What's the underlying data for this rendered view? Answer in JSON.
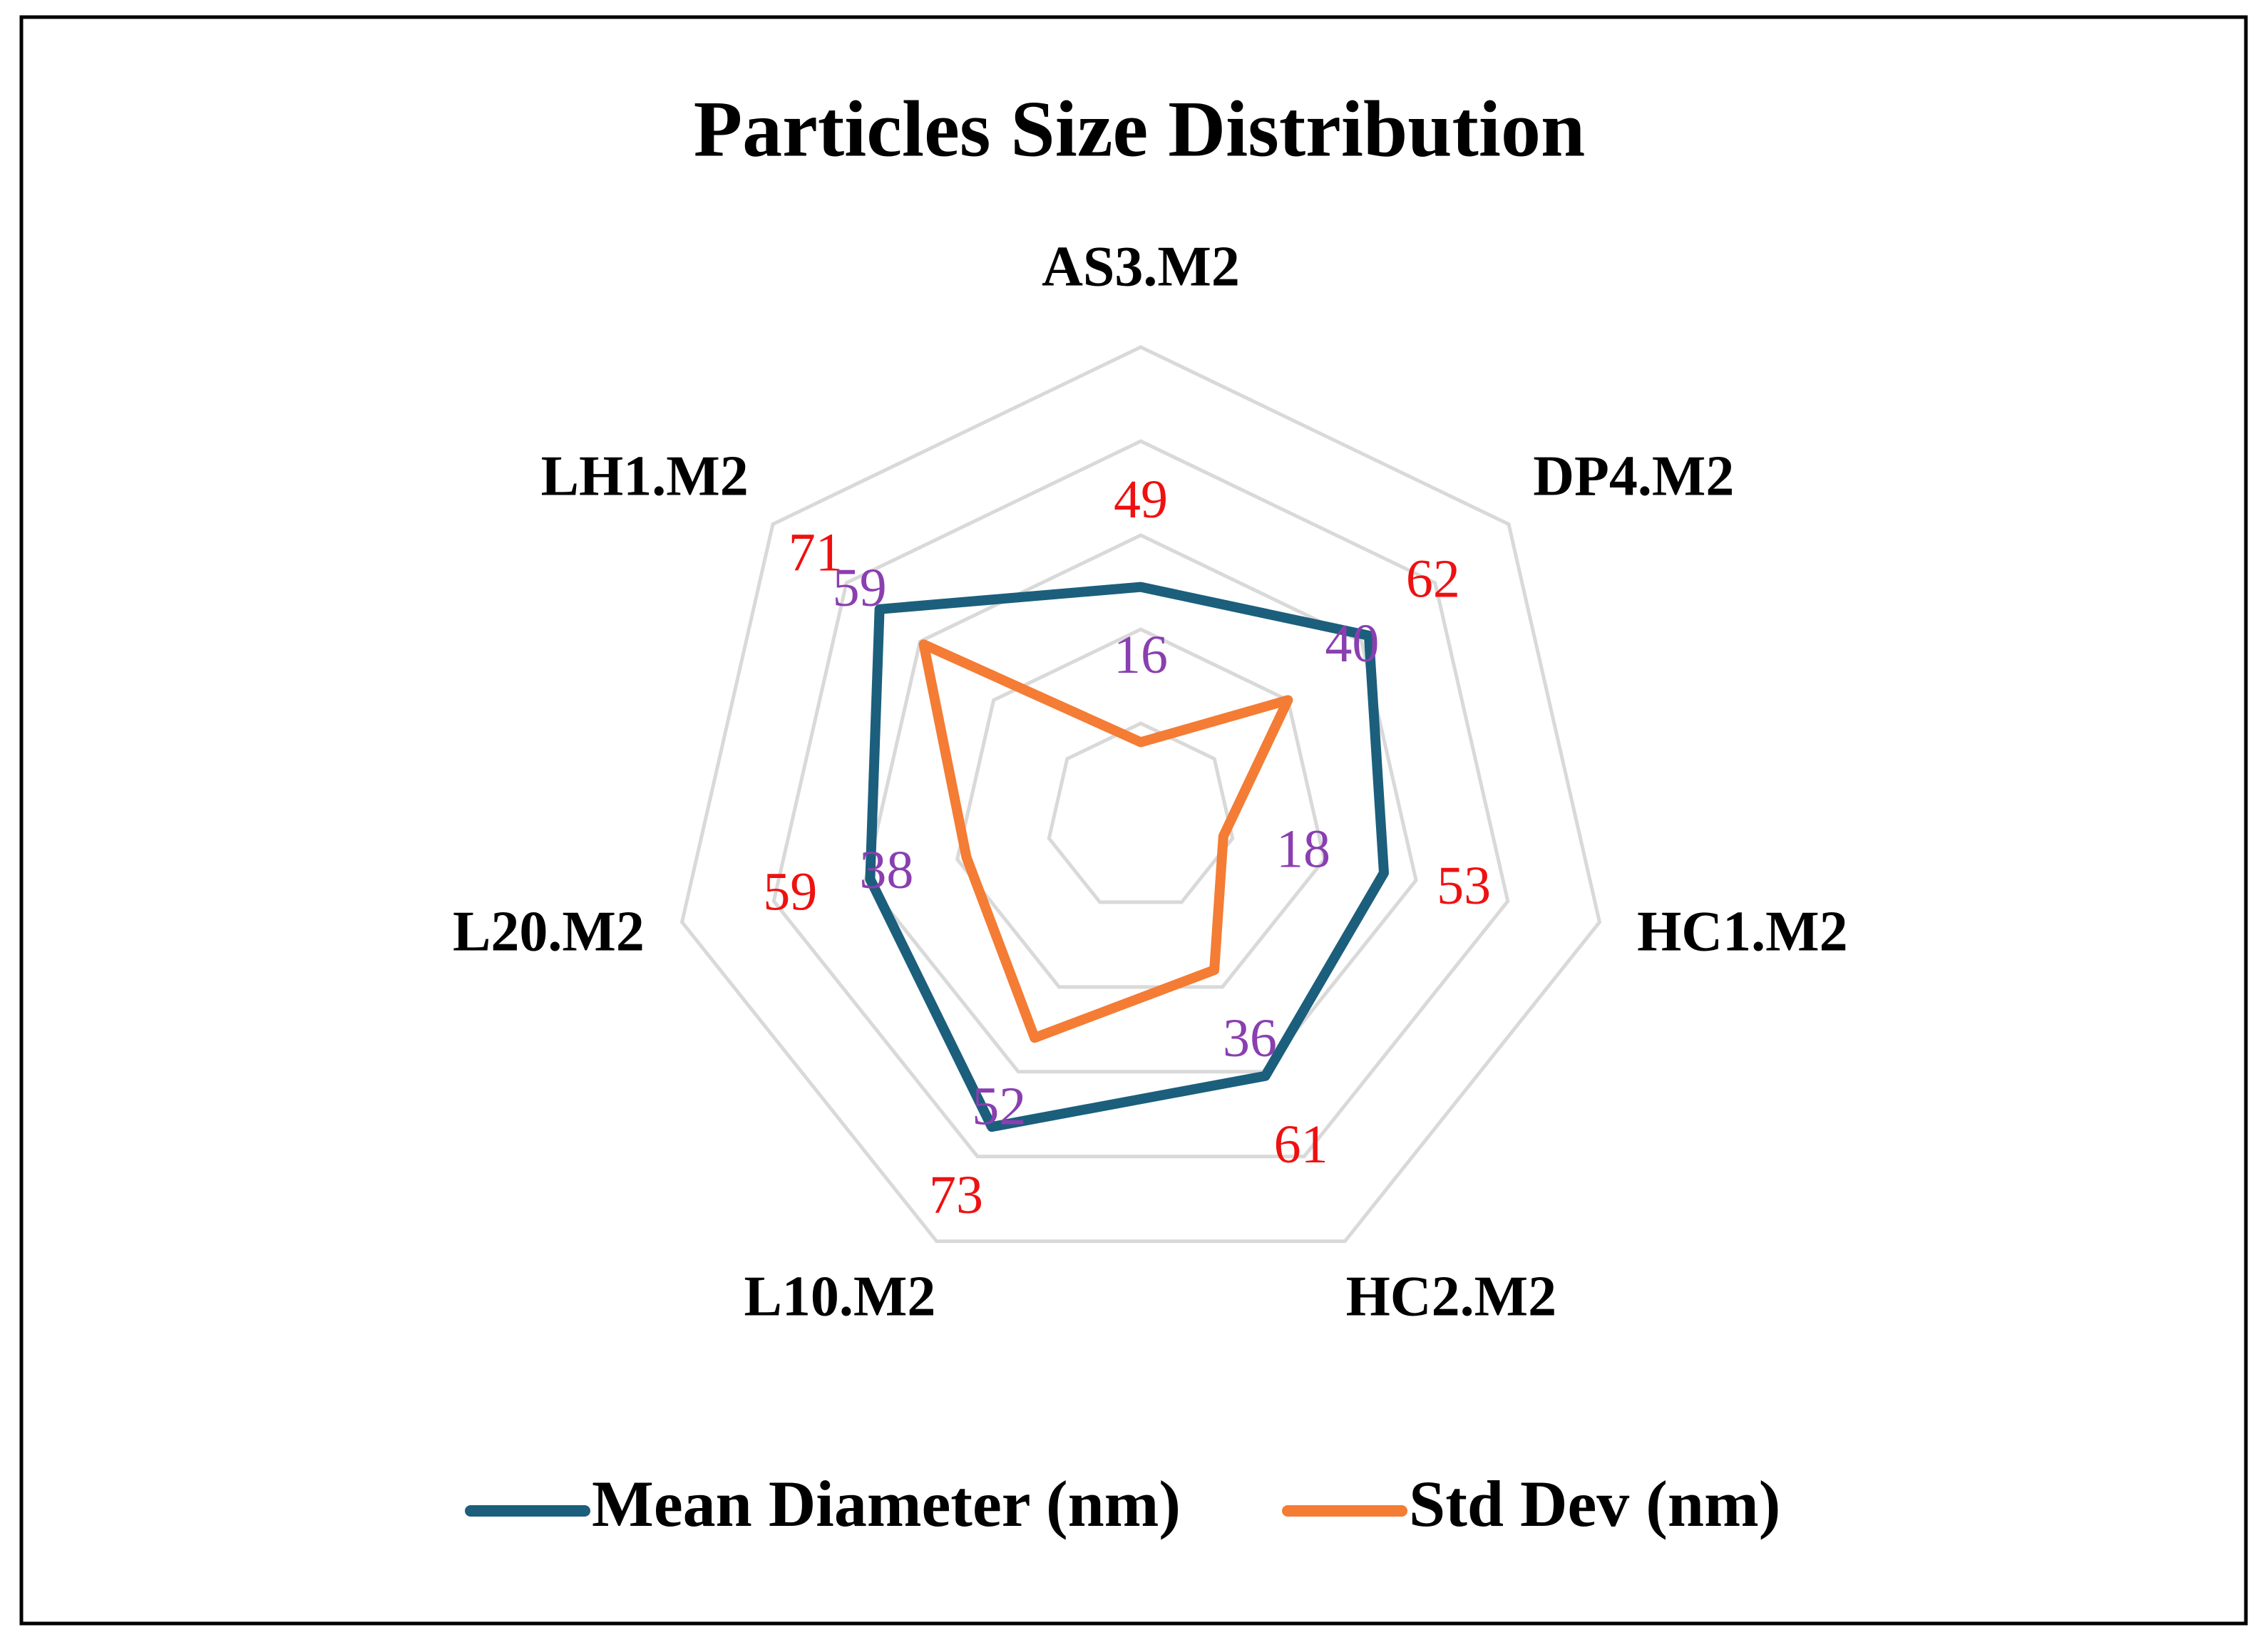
{
  "chart_data": {
    "type": "radar",
    "title": "Particles Size Distribution",
    "categories": [
      "AS3.M2",
      "DP4.M2",
      "HC1.M2",
      "HC2.M2",
      "L10.M2",
      "L20.M2",
      "LH1.M2"
    ],
    "series": [
      {
        "name": "Mean Diameter (nm)",
        "color": "#1b5f7c",
        "label_color": "#ee1111",
        "values": [
          49,
          62,
          53,
          61,
          73,
          59,
          71
        ]
      },
      {
        "name": "Std Dev (nm)",
        "color": "#f47c34",
        "label_color": "#8a3fb0",
        "values": [
          16,
          40,
          18,
          36,
          52,
          38,
          59
        ]
      }
    ],
    "ylim": [
      0,
      100
    ],
    "yticks": [
      0,
      20,
      40,
      60,
      80,
      100
    ],
    "grid": true,
    "legend": "bottom"
  }
}
